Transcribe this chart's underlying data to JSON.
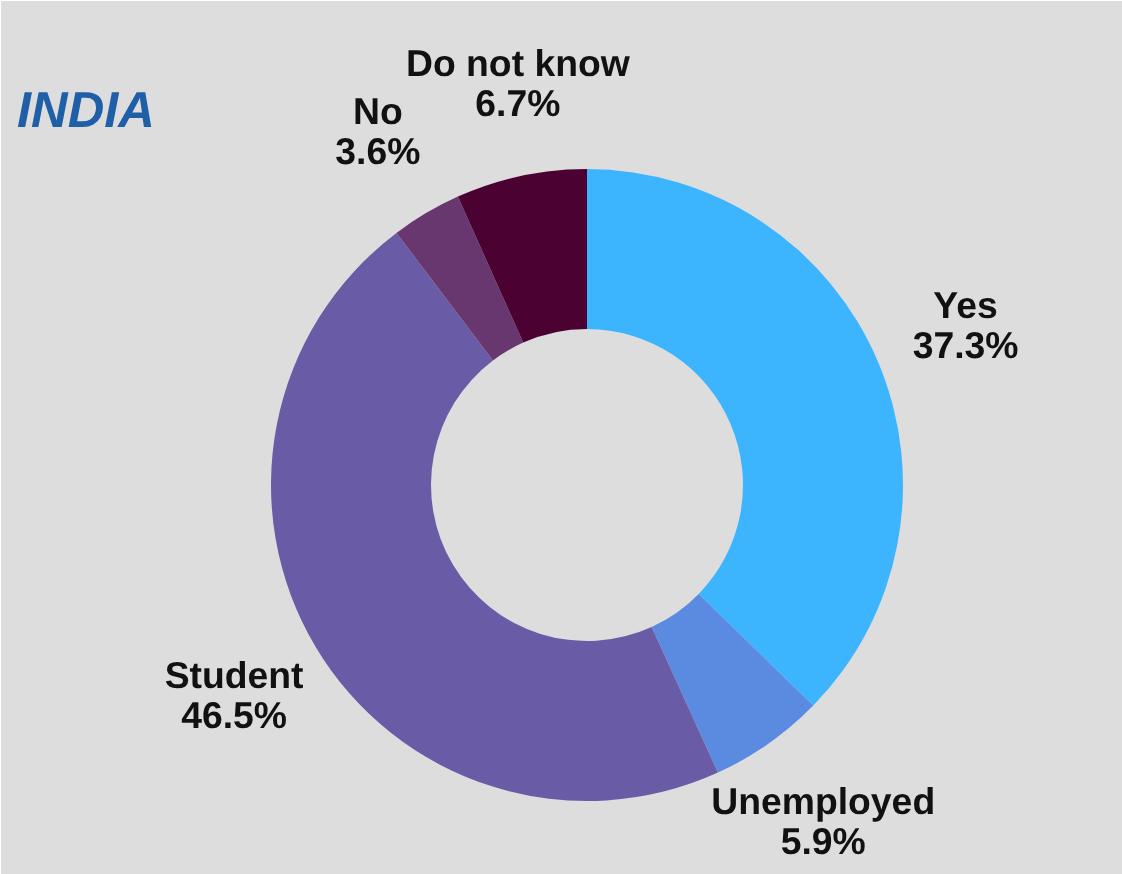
{
  "chart_data": {
    "type": "donut",
    "title": "INDIA",
    "categories": [
      "Yes",
      "Unemployed",
      "Student",
      "No",
      "Do not know"
    ],
    "values": [
      37.3,
      5.9,
      46.5,
      3.6,
      6.7
    ],
    "colors": [
      "#3cb5fe",
      "#5b8be0",
      "#6a5ba6",
      "#683770",
      "#4b0233"
    ],
    "value_labels": [
      "37.3%",
      "5.9%",
      "46.5%",
      "3.6%",
      "6.7%"
    ]
  }
}
